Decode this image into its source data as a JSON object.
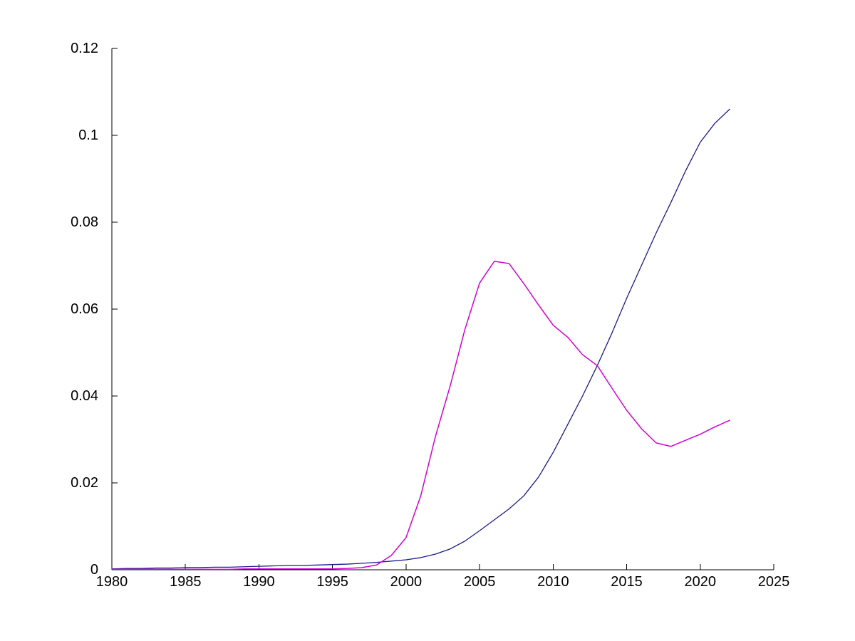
{
  "figure": {
    "background_color": "#ffffff",
    "axis_color": "#000000",
    "text_color": "#000000"
  },
  "chart_data": {
    "type": "line",
    "title": "",
    "xlabel": "",
    "ylabel": "",
    "grid": false,
    "legend": null,
    "xlim": [
      1980,
      2025
    ],
    "ylim": [
      0,
      0.12
    ],
    "x_ticks": [
      1980,
      1985,
      1990,
      1995,
      2000,
      2005,
      2010,
      2015,
      2020,
      2025
    ],
    "x_tick_labels": [
      "1980",
      "1985",
      "1990",
      "1995",
      "2000",
      "2005",
      "2010",
      "2015",
      "2020",
      "2025"
    ],
    "y_ticks": [
      0,
      0.02,
      0.04,
      0.06,
      0.08,
      0.1,
      0.12
    ],
    "y_tick_labels": [
      "0",
      "0.02",
      "0.04",
      "0.06",
      "0.08",
      "0.1",
      "0.12"
    ],
    "x": [
      1980,
      1981,
      1982,
      1983,
      1984,
      1985,
      1986,
      1987,
      1988,
      1989,
      1990,
      1991,
      1992,
      1993,
      1994,
      1995,
      1996,
      1997,
      1998,
      1999,
      2000,
      2001,
      2002,
      2003,
      2004,
      2005,
      2006,
      2007,
      2008,
      2009,
      2010,
      2011,
      2012,
      2013,
      2014,
      2015,
      2016,
      2017,
      2018,
      2019,
      2020,
      2021,
      2022
    ],
    "series": [
      {
        "name": "dark-blue-line",
        "color": "#1A1A8C",
        "stroke_width": 1.3,
        "values": [
          0.0002,
          0.0003,
          0.0003,
          0.0004,
          0.0004,
          0.0005,
          0.0005,
          0.0006,
          0.0006,
          0.0007,
          0.0008,
          0.0009,
          0.001,
          0.001,
          0.0011,
          0.0012,
          0.0013,
          0.0015,
          0.0017,
          0.002,
          0.0023,
          0.0028,
          0.0036,
          0.0048,
          0.0066,
          0.009,
          0.0115,
          0.014,
          0.017,
          0.0213,
          0.027,
          0.0335,
          0.04,
          0.047,
          0.0545,
          0.0625,
          0.07,
          0.0775,
          0.0845,
          0.0918,
          0.0984,
          0.1028,
          0.106
        ]
      },
      {
        "name": "magenta-line",
        "color": "#D400D4",
        "stroke_width": 1.5,
        "values": [
          0.0001,
          0.0001,
          0.0001,
          0.0001,
          0.0001,
          0.0001,
          0.0001,
          0.0001,
          0.0001,
          0.0002,
          0.0002,
          0.0002,
          0.0002,
          0.0002,
          0.0002,
          0.0002,
          0.0003,
          0.0005,
          0.0011,
          0.0033,
          0.0074,
          0.017,
          0.0307,
          0.0423,
          0.0553,
          0.066,
          0.071,
          0.0705,
          0.0659,
          0.061,
          0.0563,
          0.0535,
          0.0495,
          0.047,
          0.0418,
          0.0367,
          0.0325,
          0.0292,
          0.0284,
          0.0298,
          0.0312,
          0.0329,
          0.0344
        ]
      }
    ]
  }
}
